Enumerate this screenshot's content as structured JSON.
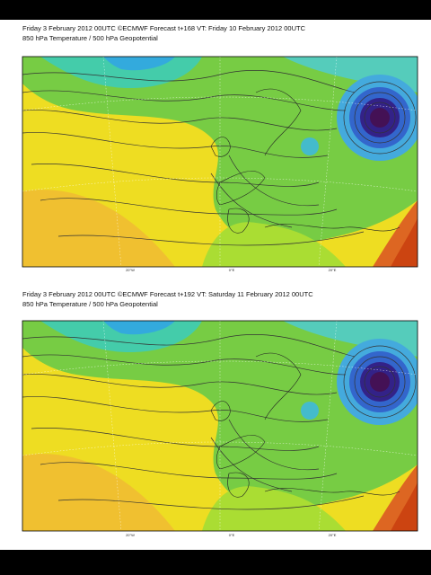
{
  "maps": [
    {
      "title": "Friday 3 February 2012 00UTC ©ECMWF Forecast t+168 VT: Friday 10 February 2012 00UTC",
      "subtitle": "850 hPa Temperature / 500 hPa Geopotential",
      "bottom_labels": [
        "20°W",
        "0°E",
        "20°E"
      ]
    },
    {
      "title": "Friday 3 February 2012 00UTC ©ECMWF Forecast t+192 VT: Saturday 11 February 2012 00UTC",
      "subtitle": "850 hPa Temperature / 500 hPa Geopotential",
      "bottom_labels": [
        "20°W",
        "0°E",
        "20°E"
      ]
    }
  ]
}
